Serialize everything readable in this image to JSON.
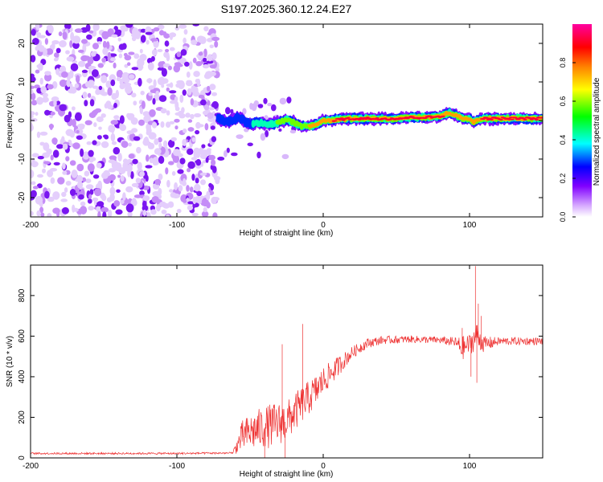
{
  "title": "S197.2025.360.12.24.E27",
  "chart_data": [
    {
      "type": "heatmap",
      "name": "spectrogram",
      "xlabel": "Height of straight line (km)",
      "ylabel": "Frequency (Hz)",
      "xlim": [
        -200,
        150
      ],
      "ylim": [
        -25,
        25
      ],
      "x_ticks": [
        -200,
        -100,
        0,
        100
      ],
      "y_ticks": [
        -20,
        -10,
        0,
        10,
        20
      ],
      "colorbar": {
        "label": "Normalized spectral amplitude",
        "range": [
          0,
          1
        ],
        "ticks": [
          0.0,
          0.2,
          0.4,
          0.6,
          0.8
        ],
        "colors": [
          "#ffffff",
          "#b000ff",
          "#0000ff",
          "#00ffff",
          "#00ff00",
          "#ffff00",
          "#ff8000",
          "#ff0000",
          "#ff00a0"
        ]
      },
      "noise_region": {
        "x": [
          -200,
          -72
        ],
        "y": [
          -25,
          25
        ],
        "amplitude": 0.15
      },
      "carrier_track": {
        "x": [
          -72,
          -65,
          -58,
          -50,
          -45,
          -40,
          -35,
          -30,
          -25,
          -20,
          -15,
          -10,
          -5,
          0,
          5,
          10,
          20,
          30,
          40,
          50,
          60,
          70,
          80,
          85,
          90,
          95,
          100,
          103,
          106,
          110,
          120,
          130,
          140,
          150
        ],
        "y": [
          0.5,
          -0.5,
          1.0,
          -1.0,
          -0.5,
          -0.8,
          -1.0,
          -0.3,
          0.2,
          -0.5,
          -1.5,
          -1.5,
          -1.0,
          0.0,
          0.0,
          0.3,
          0.5,
          0.5,
          0.5,
          0.5,
          0.8,
          0.8,
          1.0,
          2.0,
          1.5,
          0.5,
          0.5,
          -0.5,
          0.3,
          0.5,
          0.5,
          0.5,
          0.5,
          0.5
        ],
        "amp": [
          0.3,
          0.35,
          0.35,
          0.4,
          0.45,
          0.5,
          0.55,
          0.6,
          0.65,
          0.65,
          0.7,
          0.75,
          0.8,
          0.85,
          0.9,
          0.95,
          0.97,
          0.97,
          0.97,
          0.95,
          0.95,
          0.95,
          0.95,
          0.9,
          0.9,
          0.9,
          0.85,
          0.85,
          0.9,
          0.95,
          0.97,
          0.97,
          0.97,
          0.97
        ]
      }
    },
    {
      "type": "line",
      "name": "snr",
      "xlabel": "Height of straight line (km)",
      "ylabel": "SNR (10 * v/v)",
      "xlim": [
        -200,
        150
      ],
      "ylim": [
        0,
        950
      ],
      "x_ticks": [
        -200,
        -100,
        0,
        100
      ],
      "y_ticks": [
        0,
        200,
        400,
        600,
        800
      ],
      "color": "#ee3333",
      "envelope": {
        "x": [
          -200,
          -150,
          -100,
          -62,
          -55,
          -45,
          -35,
          -25,
          -15,
          -5,
          0,
          10,
          20,
          30,
          40,
          60,
          80,
          90,
          95,
          100,
          105,
          110,
          120,
          150
        ],
        "mean": [
          20,
          20,
          20,
          22,
          110,
          140,
          160,
          180,
          260,
          330,
          380,
          450,
          520,
          565,
          580,
          585,
          580,
          570,
          540,
          560,
          600,
          560,
          575,
          575
        ],
        "noise": [
          8,
          8,
          8,
          8,
          80,
          100,
          110,
          100,
          90,
          80,
          70,
          50,
          30,
          25,
          20,
          18,
          18,
          25,
          60,
          50,
          70,
          40,
          20,
          18
        ]
      },
      "spikes": [
        {
          "x": -28,
          "y": 560
        },
        {
          "x": -14,
          "y": 660
        },
        {
          "x": -40,
          "y": 0
        },
        {
          "x": -26,
          "y": 0
        },
        {
          "x": 95,
          "y": 640
        },
        {
          "x": 101,
          "y": 400
        },
        {
          "x": 104,
          "y": 945
        },
        {
          "x": 106,
          "y": 760
        },
        {
          "x": 108,
          "y": 700
        },
        {
          "x": 105,
          "y": 370
        }
      ]
    }
  ]
}
